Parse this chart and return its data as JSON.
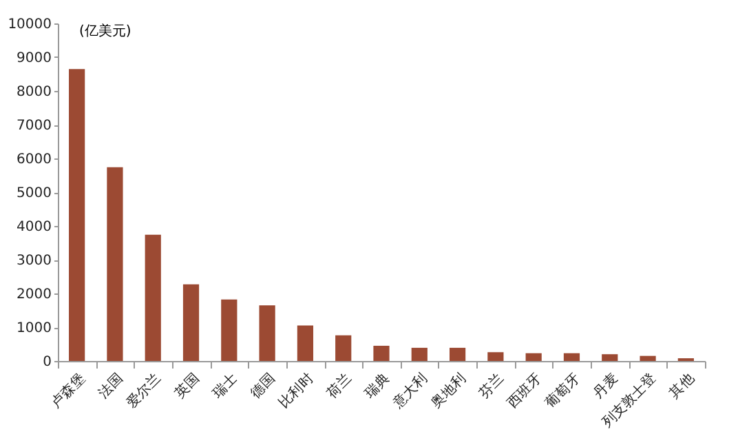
{
  "chart_data": {
    "type": "bar",
    "ylabel": "(亿美元)",
    "categories": [
      "卢森堡",
      "法国",
      "爱尔兰",
      "英国",
      "瑞士",
      "德国",
      "比利时",
      "荷兰",
      "瑞典",
      "意大利",
      "奥地利",
      "芬兰",
      "西班牙",
      "葡萄牙",
      "丹麦",
      "列支敦士登",
      "其他"
    ],
    "values": [
      8650,
      5740,
      3740,
      2270,
      1820,
      1650,
      1050,
      760,
      450,
      390,
      390,
      260,
      230,
      230,
      200,
      150,
      80
    ],
    "color": "#9c4a33",
    "ylim": [
      0,
      10000
    ],
    "yticks": [
      0,
      1000,
      2000,
      3000,
      4000,
      5000,
      6000,
      7000,
      8000,
      9000,
      10000
    ],
    "grid": false
  }
}
